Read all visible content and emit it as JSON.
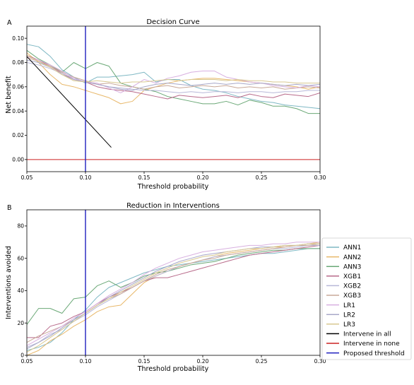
{
  "colors": {
    "ANN1": "#7fb8c4",
    "ANN2": "#e8b86a",
    "ANN3": "#6aa876",
    "XGB1": "#b86a8a",
    "XGB2": "#b8b8d8",
    "XGB3": "#c8a898",
    "LR1": "#d8b0e0",
    "LR2": "#a8a8c8",
    "LR3": "#d8c890",
    "all": "#000000",
    "none": "#cc2222",
    "threshold": "#1f1fbf"
  },
  "chart_data": [
    {
      "type": "line",
      "panel_label": "A",
      "title": "Decision Curve",
      "xlabel": "Threshold probability",
      "ylabel": "Net benefit",
      "xlim": [
        0.05,
        0.3
      ],
      "ylim": [
        -0.01,
        0.11
      ],
      "xticks": [
        "0.05",
        "0.10",
        "0.15",
        "0.20",
        "0.25",
        "0.30"
      ],
      "yticks": [
        "0.00",
        "0.02",
        "0.04",
        "0.06",
        "0.08",
        "0.10"
      ],
      "x": [
        0.05,
        0.06,
        0.07,
        0.08,
        0.09,
        0.1,
        0.11,
        0.12,
        0.13,
        0.14,
        0.15,
        0.16,
        0.17,
        0.18,
        0.19,
        0.2,
        0.21,
        0.22,
        0.23,
        0.24,
        0.25,
        0.26,
        0.27,
        0.28,
        0.29,
        0.3
      ],
      "series": [
        {
          "name": "ANN1",
          "values": [
            0.095,
            0.093,
            0.085,
            0.074,
            0.068,
            0.063,
            0.068,
            0.068,
            0.069,
            0.07,
            0.072,
            0.064,
            0.066,
            0.066,
            0.061,
            0.058,
            0.057,
            0.055,
            0.052,
            0.05,
            0.048,
            0.047,
            0.045,
            0.044,
            0.043,
            0.042
          ]
        },
        {
          "name": "ANN2",
          "values": [
            0.088,
            0.08,
            0.07,
            0.062,
            0.06,
            0.057,
            0.054,
            0.051,
            0.046,
            0.048,
            0.057,
            0.06,
            0.063,
            0.065,
            0.066,
            0.067,
            0.067,
            0.066,
            0.065,
            0.064,
            0.063,
            0.062,
            0.061,
            0.06,
            0.058,
            0.06
          ]
        },
        {
          "name": "ANN3",
          "values": [
            0.09,
            0.083,
            0.078,
            0.072,
            0.08,
            0.075,
            0.08,
            0.077,
            0.063,
            0.06,
            0.058,
            0.056,
            0.052,
            0.05,
            0.048,
            0.046,
            0.046,
            0.048,
            0.045,
            0.049,
            0.047,
            0.044,
            0.044,
            0.042,
            0.038,
            0.038
          ]
        },
        {
          "name": "XGB1",
          "values": [
            0.086,
            0.082,
            0.077,
            0.071,
            0.066,
            0.064,
            0.06,
            0.058,
            0.057,
            0.056,
            0.054,
            0.052,
            0.05,
            0.053,
            0.052,
            0.051,
            0.052,
            0.053,
            0.051,
            0.054,
            0.052,
            0.051,
            0.054,
            0.053,
            0.052,
            0.055
          ]
        },
        {
          "name": "XGB2",
          "values": [
            0.08,
            0.078,
            0.075,
            0.071,
            0.067,
            0.064,
            0.062,
            0.06,
            0.059,
            0.058,
            0.057,
            0.057,
            0.056,
            0.055,
            0.056,
            0.055,
            0.056,
            0.056,
            0.055,
            0.056,
            0.056,
            0.055,
            0.056,
            0.056,
            0.057,
            0.057
          ]
        },
        {
          "name": "XGB3",
          "values": [
            0.084,
            0.081,
            0.077,
            0.072,
            0.068,
            0.065,
            0.062,
            0.063,
            0.061,
            0.06,
            0.058,
            0.06,
            0.061,
            0.059,
            0.06,
            0.061,
            0.06,
            0.061,
            0.059,
            0.06,
            0.059,
            0.06,
            0.058,
            0.059,
            0.06,
            0.059
          ]
        },
        {
          "name": "LR1",
          "values": [
            0.085,
            0.082,
            0.078,
            0.073,
            0.067,
            0.064,
            0.063,
            0.059,
            0.055,
            0.06,
            0.066,
            0.063,
            0.067,
            0.069,
            0.072,
            0.073,
            0.073,
            0.068,
            0.066,
            0.064,
            0.063,
            0.061,
            0.06,
            0.059,
            0.061,
            0.06
          ]
        },
        {
          "name": "LR2",
          "values": [
            0.082,
            0.08,
            0.076,
            0.07,
            0.066,
            0.064,
            0.062,
            0.06,
            0.058,
            0.057,
            0.06,
            0.062,
            0.063,
            0.062,
            0.061,
            0.062,
            0.063,
            0.062,
            0.063,
            0.062,
            0.063,
            0.062,
            0.061,
            0.062,
            0.061,
            0.062
          ]
        },
        {
          "name": "LR3",
          "values": [
            0.086,
            0.081,
            0.076,
            0.07,
            0.065,
            0.064,
            0.065,
            0.064,
            0.063,
            0.064,
            0.064,
            0.065,
            0.066,
            0.065,
            0.066,
            0.066,
            0.066,
            0.065,
            0.066,
            0.065,
            0.065,
            0.064,
            0.064,
            0.063,
            0.063,
            0.063
          ]
        },
        {
          "name": "Intervene in all",
          "x": [
            0.05,
            0.122
          ],
          "values": [
            0.085,
            0.01
          ]
        },
        {
          "name": "Intervene in none",
          "x": [
            0.05,
            0.3
          ],
          "values": [
            0.0,
            0.0
          ]
        }
      ],
      "vline": {
        "name": "Proposed threshold",
        "x": 0.1
      }
    },
    {
      "type": "line",
      "panel_label": "B",
      "title": "Reduction in Interventions",
      "xlabel": "Threshold probability",
      "ylabel": "Interventions avoided",
      "xlim": [
        0.05,
        0.3
      ],
      "ylim": [
        0,
        90
      ],
      "xticks": [
        "0.05",
        "0.10",
        "0.15",
        "0.20",
        "0.25",
        "0.30"
      ],
      "yticks": [
        "0",
        "20",
        "40",
        "60",
        "80"
      ],
      "x": [
        0.05,
        0.06,
        0.07,
        0.08,
        0.09,
        0.1,
        0.11,
        0.12,
        0.13,
        0.14,
        0.15,
        0.16,
        0.17,
        0.18,
        0.19,
        0.2,
        0.21,
        0.22,
        0.23,
        0.24,
        0.25,
        0.26,
        0.27,
        0.28,
        0.29,
        0.3
      ],
      "series": [
        {
          "name": "ANN1",
          "values": [
            3,
            5,
            8,
            14,
            22,
            28,
            36,
            42,
            45,
            48,
            51,
            53,
            55,
            56,
            57,
            58,
            59,
            60,
            61,
            62,
            63,
            63,
            64,
            65,
            66,
            66
          ]
        },
        {
          "name": "ANN2",
          "values": [
            0,
            3,
            9,
            13,
            18,
            22,
            27,
            30,
            31,
            38,
            45,
            49,
            52,
            55,
            57,
            59,
            61,
            63,
            64,
            65,
            66,
            67,
            67,
            68,
            69,
            70
          ]
        },
        {
          "name": "ANN3",
          "values": [
            19,
            29,
            29,
            26,
            35,
            36,
            43,
            46,
            42,
            45,
            49,
            51,
            52,
            54,
            56,
            57,
            58,
            60,
            62,
            63,
            64,
            65,
            65,
            66,
            66,
            66
          ]
        },
        {
          "name": "XGB1",
          "values": [
            11,
            11,
            18,
            20,
            24,
            27,
            32,
            36,
            39,
            42,
            46,
            48,
            48,
            50,
            52,
            54,
            56,
            58,
            60,
            62,
            63,
            64,
            65,
            66,
            67,
            68
          ]
        },
        {
          "name": "XGB2",
          "values": [
            5,
            8,
            13,
            16,
            21,
            25,
            30,
            34,
            38,
            42,
            46,
            49,
            52,
            55,
            57,
            59,
            61,
            62,
            63,
            64,
            65,
            66,
            66,
            67,
            68,
            68
          ]
        },
        {
          "name": "XGB3",
          "values": [
            8,
            12,
            15,
            18,
            22,
            26,
            31,
            35,
            38,
            42,
            46,
            50,
            53,
            55,
            57,
            59,
            60,
            62,
            63,
            64,
            65,
            66,
            67,
            68,
            68,
            69
          ]
        },
        {
          "name": "LR1",
          "values": [
            6,
            10,
            14,
            18,
            23,
            27,
            32,
            37,
            41,
            45,
            50,
            54,
            57,
            60,
            62,
            64,
            65,
            66,
            67,
            68,
            68,
            69,
            69,
            70,
            70,
            70
          ]
        },
        {
          "name": "LR2",
          "values": [
            4,
            8,
            12,
            17,
            22,
            26,
            31,
            36,
            40,
            44,
            48,
            52,
            55,
            58,
            60,
            62,
            63,
            64,
            65,
            66,
            67,
            67,
            68,
            68,
            69,
            69
          ]
        },
        {
          "name": "LR3",
          "values": [
            2,
            6,
            11,
            16,
            21,
            26,
            31,
            35,
            39,
            43,
            47,
            51,
            54,
            57,
            59,
            61,
            62,
            64,
            65,
            66,
            66,
            67,
            68,
            68,
            69,
            69
          ]
        }
      ],
      "vline": {
        "name": "Proposed threshold",
        "x": 0.1
      }
    }
  ],
  "legend": {
    "placement": "right",
    "entries": [
      "ANN1",
      "ANN2",
      "ANN3",
      "XGB1",
      "XGB2",
      "XGB3",
      "LR1",
      "LR2",
      "LR3",
      "Intervene in all",
      "Intervene in none",
      "Proposed threshold"
    ],
    "color_keys": [
      "ANN1",
      "ANN2",
      "ANN3",
      "XGB1",
      "XGB2",
      "XGB3",
      "LR1",
      "LR2",
      "LR3",
      "all",
      "none",
      "threshold"
    ]
  }
}
